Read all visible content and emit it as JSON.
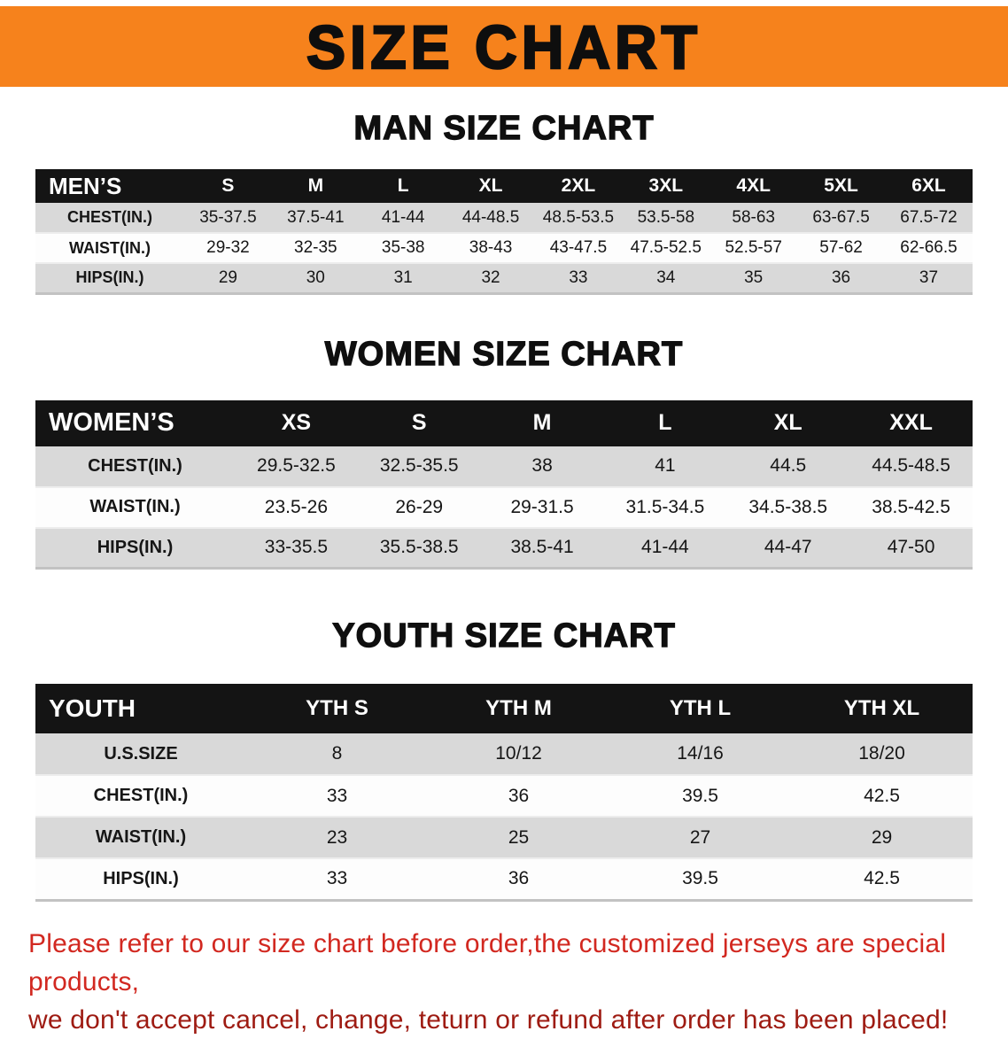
{
  "banner": {
    "title": "SIZE CHART"
  },
  "colors": {
    "banner_bg": "#f6821c",
    "table_header_bg": "#141414",
    "row_gray": "#d9d9d9",
    "footer_red_primary": "#d22820",
    "footer_red_dark": "#9e1b12"
  },
  "sections": [
    {
      "heading": "MAN SIZE CHART",
      "table": {
        "name": "mens-size-table",
        "label": "MEN’S",
        "columns": [
          "S",
          "M",
          "L",
          "XL",
          "2XL",
          "3XL",
          "4XL",
          "5XL",
          "6XL"
        ],
        "rows": [
          {
            "label": "CHEST(IN.)",
            "values": [
              "35-37.5",
              "37.5-41",
              "41-44",
              "44-48.5",
              "48.5-53.5",
              "53.5-58",
              "58-63",
              "63-67.5",
              "67.5-72"
            ]
          },
          {
            "label": "WAIST(IN.)",
            "values": [
              "29-32",
              "32-35",
              "35-38",
              "38-43",
              "43-47.5",
              "47.5-52.5",
              "52.5-57",
              "57-62",
              "62-66.5"
            ]
          },
          {
            "label": "HIPS(IN.)",
            "values": [
              "29",
              "30",
              "31",
              "32",
              "33",
              "34",
              "35",
              "36",
              "37"
            ]
          }
        ]
      }
    },
    {
      "heading": "WOMEN SIZE CHART",
      "table": {
        "name": "womens-size-table",
        "label": "WOMEN’S",
        "columns": [
          "XS",
          "S",
          "M",
          "L",
          "XL",
          "XXL"
        ],
        "rows": [
          {
            "label": "CHEST(IN.)",
            "values": [
              "29.5-32.5",
              "32.5-35.5",
              "38",
              "41",
              "44.5",
              "44.5-48.5"
            ]
          },
          {
            "label": "WAIST(IN.)",
            "values": [
              "23.5-26",
              "26-29",
              "29-31.5",
              "31.5-34.5",
              "34.5-38.5",
              "38.5-42.5"
            ]
          },
          {
            "label": "HIPS(IN.)",
            "values": [
              "33-35.5",
              "35.5-38.5",
              "38.5-41",
              "41-44",
              "44-47",
              "47-50"
            ]
          }
        ]
      }
    },
    {
      "heading": "YOUTH SIZE CHART",
      "table": {
        "name": "youth-size-table",
        "label": "YOUTH",
        "columns": [
          "YTH S",
          "YTH M",
          "YTH L",
          "YTH XL"
        ],
        "rows": [
          {
            "label": "U.S.SIZE",
            "values": [
              "8",
              "10/12",
              "14/16",
              "18/20"
            ]
          },
          {
            "label": "CHEST(IN.)",
            "values": [
              "33",
              "36",
              "39.5",
              "42.5"
            ]
          },
          {
            "label": "WAIST(IN.)",
            "values": [
              "23",
              "25",
              "27",
              "29"
            ]
          },
          {
            "label": "HIPS(IN.)",
            "values": [
              "33",
              "36",
              "39.5",
              "42.5"
            ]
          }
        ]
      }
    }
  ],
  "footer": {
    "line1": "Please refer to our size chart before order,the customized jerseys are special products,",
    "line2": "we don't accept cancel, change, teturn or refund after order has been placed!"
  }
}
